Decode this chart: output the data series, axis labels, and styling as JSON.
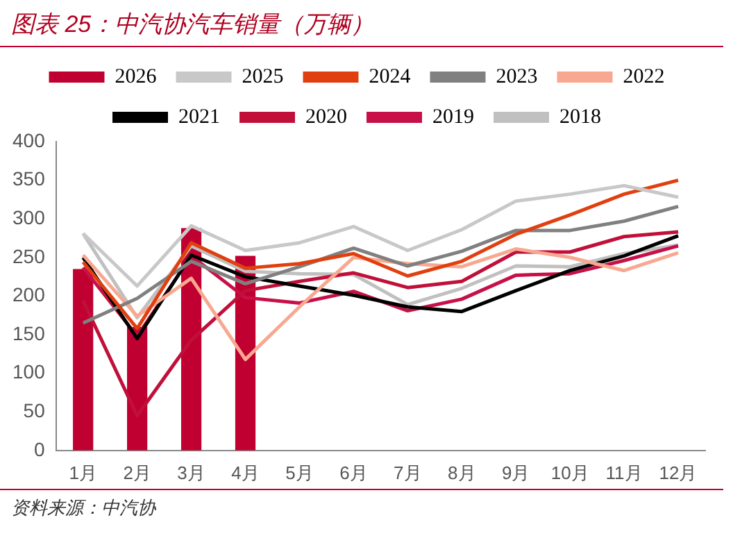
{
  "chart_data": {
    "type": "bar",
    "title": "图表 25：中汽协汽车销量（万辆）",
    "categories": [
      "1月",
      "2月",
      "3月",
      "4月",
      "5月",
      "6月",
      "7月",
      "8月",
      "9月",
      "10月",
      "11月",
      "12月"
    ],
    "series": [
      {
        "name": "2026",
        "color": "#c00030",
        "values": [
          235,
          160,
          288,
          252,
          null,
          null,
          null,
          null,
          null,
          null,
          null,
          null
        ]
      },
      {
        "name": "2025",
        "type": "line",
        "color": "#c8c8c8",
        "values": [
          281,
          213,
          291,
          259,
          269,
          290,
          259,
          286,
          323,
          332,
          343,
          328
        ]
      },
      {
        "name": "2024",
        "type": "line",
        "color": "#e04010",
        "values": [
          244,
          158,
          269,
          236,
          242,
          255,
          226,
          245,
          280,
          305,
          332,
          350
        ]
      },
      {
        "name": "2023",
        "type": "line",
        "color": "#808080",
        "values": [
          165,
          197,
          245,
          216,
          238,
          262,
          239,
          258,
          285,
          285,
          297,
          316
        ]
      },
      {
        "name": "2022",
        "type": "line",
        "color": "#f8a890",
        "values": [
          253,
          174,
          223,
          118,
          186,
          250,
          242,
          238,
          261,
          250,
          233,
          256
        ]
      },
      {
        "name": "2021",
        "type": "line",
        "color": "#000000",
        "values": [
          250,
          145,
          253,
          225,
          213,
          201,
          186,
          180,
          207,
          233,
          252,
          278
        ]
      },
      {
        "name": "2020",
        "type": "line",
        "color": "#c0103a",
        "values": [
          194,
          45,
          143,
          207,
          219,
          230,
          211,
          219,
          257,
          257,
          277,
          283
        ]
      },
      {
        "name": "2019",
        "type": "line",
        "color": "#c81048",
        "values": [
          237,
          148,
          252,
          198,
          191,
          206,
          181,
          196,
          227,
          229,
          246,
          265
        ]
      },
      {
        "name": "2018",
        "type": "line",
        "color": "#c0c0c0",
        "values": [
          281,
          172,
          265,
          232,
          229,
          228,
          189,
          210,
          239,
          238,
          255,
          266
        ]
      }
    ],
    "ylim": [
      0,
      400
    ],
    "yticks": [
      0,
      50,
      100,
      150,
      200,
      250,
      300,
      350,
      400
    ],
    "grid": false,
    "legend": "top",
    "annotations": [
      "资料来源：中汽协"
    ]
  }
}
